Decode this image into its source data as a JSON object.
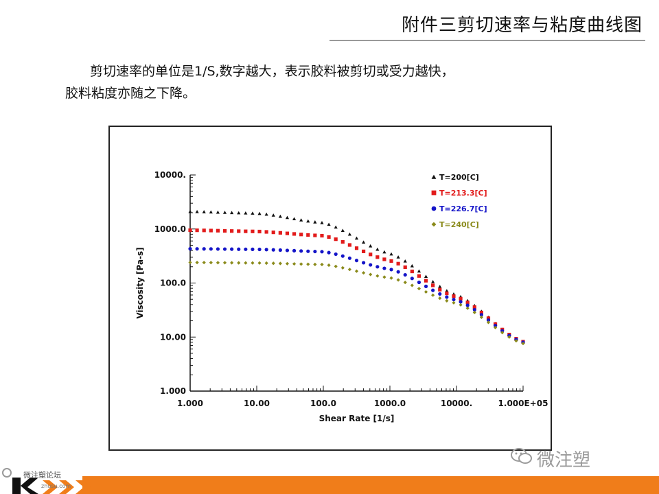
{
  "slide": {
    "title": "附件三剪切速率与粘度曲线图",
    "paragraph_line1": "剪切速率的单位是1/S,数字越大，表示胶料被剪切或受力越快，",
    "paragraph_line2": "胶料粘度亦随之下降。"
  },
  "watermark": {
    "text": "微注塑",
    "icon": "wechat-icon"
  },
  "footer": {
    "logo_text": "微注塑论坛",
    "logo_sub": "zhusu.com"
  },
  "chart_data": {
    "type": "scatter",
    "xlabel": "Shear Rate [1/s]",
    "ylabel": "Viscosity [Pa-s]",
    "x_scale": "log",
    "y_scale": "log",
    "xlim": [
      1,
      100000
    ],
    "ylim": [
      1,
      10000
    ],
    "x_ticks": [
      {
        "value": 1,
        "label": "1.000"
      },
      {
        "value": 10,
        "label": "10.00"
      },
      {
        "value": 100,
        "label": "100.0"
      },
      {
        "value": 1000,
        "label": "1000.0"
      },
      {
        "value": 10000,
        "label": "10000."
      },
      {
        "value": 100000,
        "label": "1.000E+05"
      }
    ],
    "y_ticks": [
      {
        "value": 1,
        "label": "1.000"
      },
      {
        "value": 10,
        "label": "10.00"
      },
      {
        "value": 100,
        "label": "100.0"
      },
      {
        "value": 1000,
        "label": "1000.0"
      },
      {
        "value": 10000,
        "label": "10000."
      }
    ],
    "legend_position": "top-right",
    "grid": false,
    "series": [
      {
        "name": "T=200[C]",
        "color": "#111111",
        "marker": "triangle",
        "x": [
          1,
          10,
          100,
          1000,
          10000,
          100000
        ],
        "values": [
          2100,
          1950,
          1300,
          350,
          60,
          8
        ]
      },
      {
        "name": "T=213.3[C]",
        "color": "#e21b1b",
        "marker": "square",
        "x": [
          1,
          10,
          100,
          1000,
          10000,
          100000
        ],
        "values": [
          950,
          900,
          750,
          260,
          55,
          8.2
        ]
      },
      {
        "name": "T=226.7[C]",
        "color": "#1414c8",
        "marker": "circle",
        "x": [
          1,
          10,
          100,
          1000,
          10000,
          100000
        ],
        "values": [
          430,
          420,
          380,
          180,
          48,
          8
        ]
      },
      {
        "name": "T=240[C]",
        "color": "#8a8a1a",
        "marker": "diamond",
        "x": [
          1,
          10,
          100,
          1000,
          10000,
          100000
        ],
        "values": [
          240,
          235,
          220,
          125,
          42,
          7.6
        ]
      }
    ]
  }
}
